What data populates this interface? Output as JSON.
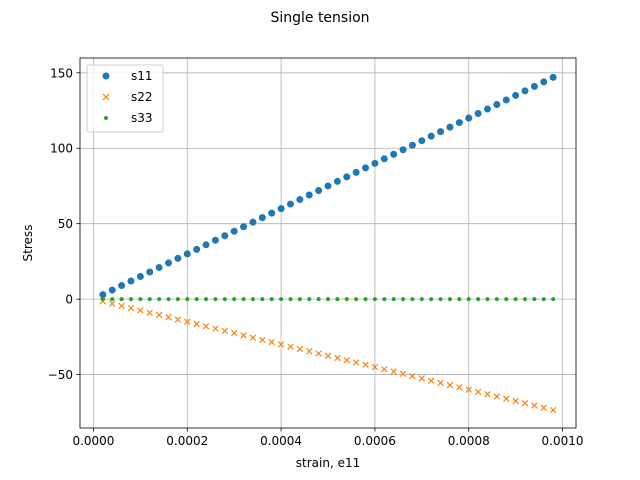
{
  "chart_data": {
    "type": "scatter",
    "title": "Single tension",
    "xlabel": "strain, e11",
    "ylabel": "Stress",
    "xlim": [
      -2.87e-05,
      0.0010287
    ],
    "ylim": [
      -85.4,
      159.8
    ],
    "x_ticks": [
      0.0,
      0.0002,
      0.0004,
      0.0006,
      0.0008,
      0.001
    ],
    "x_tick_labels": [
      "0.0000",
      "0.0002",
      "0.0004",
      "0.0006",
      "0.0008",
      "0.0010"
    ],
    "y_ticks": [
      -50,
      0,
      50,
      100,
      150
    ],
    "y_tick_labels": [
      "−50",
      "0",
      "50",
      "100",
      "150"
    ],
    "grid": true,
    "legend": "top-left",
    "x": {
      "start": 2e-05,
      "step": 2e-05,
      "count": 49
    },
    "series": [
      {
        "name": "s11",
        "slope": 150000,
        "marker": "circle",
        "color": "#1f77b4"
      },
      {
        "name": "s22",
        "slope": -75000,
        "marker": "x",
        "color": "#ff7f0e"
      },
      {
        "name": "s33",
        "slope": 0,
        "marker": "point",
        "color": "#2ca02c"
      }
    ]
  }
}
